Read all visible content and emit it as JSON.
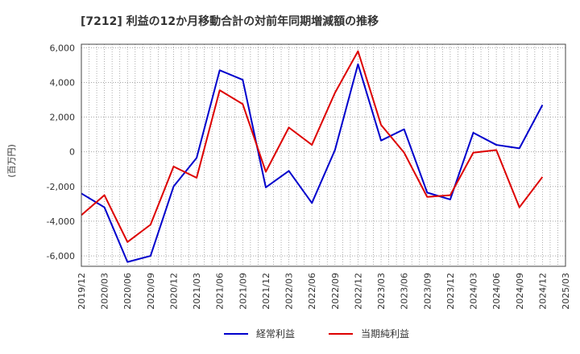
{
  "chart_data": {
    "type": "line",
    "title": "[7212]  利益の12か月移動合計の対前年同期増減額の推移",
    "ylabel": "(百万円)",
    "xlabel": "",
    "ylim": [
      -6600,
      6200
    ],
    "yticks": [
      6000,
      4000,
      2000,
      0,
      -2000,
      -4000,
      -6000
    ],
    "ytick_labels": [
      "6,000",
      "4,000",
      "2,000",
      "0",
      "-2,000",
      "-4,000",
      "-6,000"
    ],
    "categories": [
      "2019/12",
      "2020/03",
      "2020/06",
      "2020/09",
      "2020/12",
      "2021/03",
      "2021/06",
      "2021/09",
      "2021/12",
      "2022/03",
      "2022/06",
      "2022/09",
      "2022/12",
      "2023/03",
      "2023/06",
      "2023/09",
      "2023/12",
      "2024/03",
      "2024/06",
      "2024/09",
      "2024/12",
      "2025/03"
    ],
    "series": [
      {
        "name": "経常利益",
        "color": "#0000cc",
        "values": [
          -2400,
          -3200,
          -6350,
          -6000,
          -2000,
          -350,
          4700,
          4150,
          -2050,
          -1100,
          -2950,
          100,
          5050,
          650,
          1300,
          -2350,
          -2750,
          1100,
          400,
          200,
          2700,
          null
        ]
      },
      {
        "name": "当期純利益",
        "color": "#dd0000",
        "values": [
          -3650,
          -2500,
          -5200,
          -4200,
          -850,
          -1500,
          3550,
          2750,
          -1150,
          1400,
          400,
          3400,
          5800,
          1550,
          -50,
          -2600,
          -2500,
          -50,
          100,
          -3200,
          -1450,
          null
        ]
      }
    ],
    "legend": [
      "経常利益",
      "当期純利益"
    ],
    "legend_position": "bottom",
    "grid": true
  }
}
